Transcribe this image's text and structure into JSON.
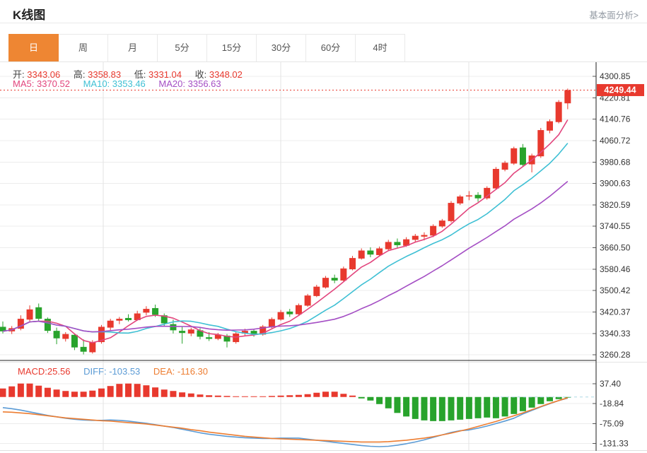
{
  "header": {
    "title": "K线图",
    "link": "基本面分析>"
  },
  "tabs": {
    "items": [
      "日",
      "周",
      "月",
      "5分",
      "15分",
      "30分",
      "60分",
      "4时"
    ],
    "active_index": 0
  },
  "ohlc": {
    "open_label": "开:",
    "open": "3343.06",
    "high_label": "高:",
    "high": "3358.83",
    "low_label": "低:",
    "low": "3331.04",
    "close_label": "收:",
    "close": "3348.02"
  },
  "ma": {
    "ma5_label": "MA5:",
    "ma5": "3370.52",
    "ma10_label": "MA10:",
    "ma10": "3353.46",
    "ma20_label": "MA20:",
    "ma20": "3356.63"
  },
  "macd_header": {
    "macd_label": "MACD:",
    "macd": "25.56",
    "diff_label": "DIFF:",
    "diff": "-103.53",
    "dea_label": "DEA:",
    "dea": "-116.30"
  },
  "colors": {
    "up": "#e8392e",
    "down": "#28a32c",
    "ma5": "#e2457d",
    "ma10": "#3fc0d4",
    "ma20": "#a44ec4",
    "diff": "#5b9bd5",
    "dea": "#ed7d31",
    "accent": "#ee8633",
    "axis_text": "#333333",
    "grid": "#ececec",
    "vgrid": "#e3e3e3",
    "current_price_bg": "#e8392e"
  },
  "chart_data": {
    "type": "candlestick",
    "price_axis_labels": [
      "4300.85",
      "4220.81",
      "4140.76",
      "4060.72",
      "3980.68",
      "3900.63",
      "3820.59",
      "3740.55",
      "3660.50",
      "3580.46",
      "3500.42",
      "3420.37",
      "3340.33",
      "3260.28"
    ],
    "macd_axis_labels": [
      "37.40",
      "-18.84",
      "-75.09",
      "-131.33"
    ],
    "current_price": 4249.44,
    "current_price_label": "4249.44",
    "ma_periods": [
      5,
      10,
      20
    ],
    "candles_ohlc": [
      [
        3365,
        3385,
        3340,
        3348
      ],
      [
        3348,
        3368,
        3338,
        3360
      ],
      [
        3358,
        3408,
        3352,
        3395
      ],
      [
        3392,
        3445,
        3385,
        3430
      ],
      [
        3438,
        3452,
        3388,
        3395
      ],
      [
        3395,
        3400,
        3342,
        3350
      ],
      [
        3350,
        3362,
        3300,
        3322
      ],
      [
        3320,
        3345,
        3310,
        3338
      ],
      [
        3335,
        3340,
        3278,
        3288
      ],
      [
        3290,
        3318,
        3262,
        3272
      ],
      [
        3270,
        3315,
        3265,
        3308
      ],
      [
        3308,
        3372,
        3302,
        3365
      ],
      [
        3362,
        3395,
        3352,
        3388
      ],
      [
        3388,
        3402,
        3375,
        3395
      ],
      [
        3398,
        3412,
        3385,
        3390
      ],
      [
        3390,
        3425,
        3388,
        3415
      ],
      [
        3418,
        3442,
        3408,
        3432
      ],
      [
        3435,
        3448,
        3402,
        3410
      ],
      [
        3408,
        3415,
        3365,
        3378
      ],
      [
        3375,
        3392,
        3340,
        3352
      ],
      [
        3350,
        3365,
        3302,
        3342
      ],
      [
        3340,
        3362,
        3330,
        3355
      ],
      [
        3352,
        3360,
        3318,
        3328
      ],
      [
        3326,
        3345,
        3312,
        3320
      ],
      [
        3320,
        3342,
        3315,
        3335
      ],
      [
        3332,
        3338,
        3288,
        3310
      ],
      [
        3308,
        3345,
        3302,
        3340
      ],
      [
        3340,
        3358,
        3330,
        3350
      ],
      [
        3350,
        3355,
        3328,
        3338
      ],
      [
        3336,
        3372,
        3332,
        3366
      ],
      [
        3364,
        3400,
        3360,
        3394
      ],
      [
        3392,
        3428,
        3388,
        3420
      ],
      [
        3422,
        3432,
        3402,
        3412
      ],
      [
        3412,
        3452,
        3408,
        3446
      ],
      [
        3444,
        3488,
        3440,
        3482
      ],
      [
        3480,
        3522,
        3476,
        3515
      ],
      [
        3512,
        3555,
        3508,
        3548
      ],
      [
        3548,
        3560,
        3528,
        3538
      ],
      [
        3538,
        3590,
        3535,
        3583
      ],
      [
        3580,
        3630,
        3576,
        3622
      ],
      [
        3620,
        3658,
        3616,
        3650
      ],
      [
        3650,
        3662,
        3625,
        3635
      ],
      [
        3633,
        3665,
        3628,
        3658
      ],
      [
        3655,
        3690,
        3650,
        3682
      ],
      [
        3682,
        3695,
        3660,
        3670
      ],
      [
        3668,
        3700,
        3664,
        3692
      ],
      [
        3690,
        3712,
        3680,
        3705
      ],
      [
        3702,
        3718,
        3688,
        3708
      ],
      [
        3706,
        3748,
        3700,
        3742
      ],
      [
        3740,
        3768,
        3735,
        3762
      ],
      [
        3760,
        3835,
        3755,
        3828
      ],
      [
        3826,
        3858,
        3820,
        3852
      ],
      [
        3852,
        3872,
        3838,
        3856
      ],
      [
        3858,
        3868,
        3832,
        3845
      ],
      [
        3845,
        3890,
        3840,
        3884
      ],
      [
        3882,
        3962,
        3878,
        3955
      ],
      [
        3952,
        3985,
        3946,
        3978
      ],
      [
        3975,
        4038,
        3970,
        4032
      ],
      [
        4035,
        4048,
        3962,
        3970
      ],
      [
        3972,
        4012,
        3942,
        4005
      ],
      [
        4002,
        4108,
        3996,
        4100
      ],
      [
        4098,
        4140,
        4088,
        4133
      ],
      [
        4130,
        4212,
        4125,
        4205
      ],
      [
        4200,
        4255,
        4178,
        4249.44
      ]
    ],
    "macd": {
      "hist": [
        24,
        30,
        38,
        38,
        32,
        26,
        21,
        17,
        15,
        15,
        18,
        24,
        31,
        37,
        38,
        37,
        33,
        27,
        21,
        17,
        13,
        10,
        7,
        5,
        4,
        3,
        2,
        2,
        2,
        2,
        3,
        4,
        5,
        6,
        8,
        12,
        15,
        15,
        9,
        4,
        -4,
        -10,
        -20,
        -32,
        -45,
        -55,
        -62,
        -66,
        -68,
        -68,
        -66,
        -64,
        -62,
        -60,
        -58,
        -60,
        -55,
        -48,
        -40,
        -30,
        -20,
        -12,
        -6,
        -2
      ],
      "diff": [
        -30,
        -33,
        -37,
        -42,
        -47,
        -52,
        -56,
        -60,
        -63,
        -65,
        -66,
        -66,
        -65,
        -66,
        -68,
        -71,
        -74,
        -78,
        -82,
        -86,
        -91,
        -96,
        -101,
        -105,
        -108,
        -111,
        -113,
        -115,
        -116,
        -117,
        -117,
        -116,
        -116,
        -116,
        -119,
        -122,
        -125,
        -128,
        -131,
        -134,
        -137,
        -139,
        -140,
        -139,
        -136,
        -132,
        -127,
        -121,
        -114,
        -107,
        -100,
        -95,
        -93,
        -88,
        -82,
        -75,
        -68,
        -60,
        -48,
        -38,
        -28,
        -19,
        -10,
        -3
      ],
      "dea": [
        -42,
        -43,
        -45,
        -47,
        -50,
        -53,
        -56,
        -59,
        -61,
        -63,
        -65,
        -67,
        -68,
        -70,
        -72,
        -74,
        -76,
        -79,
        -82,
        -85,
        -88,
        -92,
        -95,
        -99,
        -102,
        -105,
        -108,
        -111,
        -113,
        -115,
        -117,
        -118,
        -119,
        -120,
        -121,
        -122,
        -123,
        -124,
        -125,
        -126,
        -127,
        -127,
        -127,
        -126,
        -124,
        -122,
        -119,
        -116,
        -112,
        -107,
        -102,
        -96,
        -90,
        -83,
        -76,
        -69,
        -61,
        -53,
        -45,
        -36,
        -27,
        -18,
        -10,
        -2
      ]
    }
  }
}
